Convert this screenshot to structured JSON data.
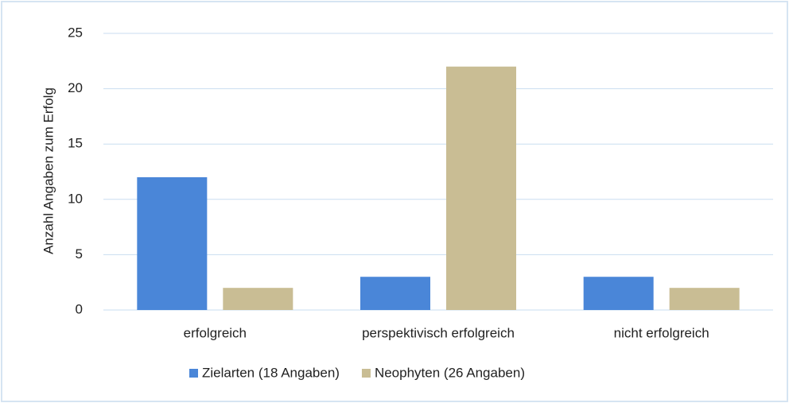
{
  "chart_data": {
    "type": "bar",
    "ylabel": "Anzahl Angaben zum Erfolg",
    "categories": [
      "erfolgreich",
      "perspektivisch erfolgreich",
      "nicht erfolgreich"
    ],
    "series": [
      {
        "name": "Zielarten (18 Angaben)",
        "color": "#4a86d8",
        "values": [
          12,
          3,
          3
        ]
      },
      {
        "name": "Neophyten (26 Angaben)",
        "color": "#c9bd94",
        "values": [
          2,
          22,
          2
        ]
      }
    ],
    "ylim": [
      0,
      25
    ],
    "yticks": [
      0,
      5,
      10,
      15,
      20,
      25
    ],
    "grid": true,
    "legend": "bottom"
  }
}
